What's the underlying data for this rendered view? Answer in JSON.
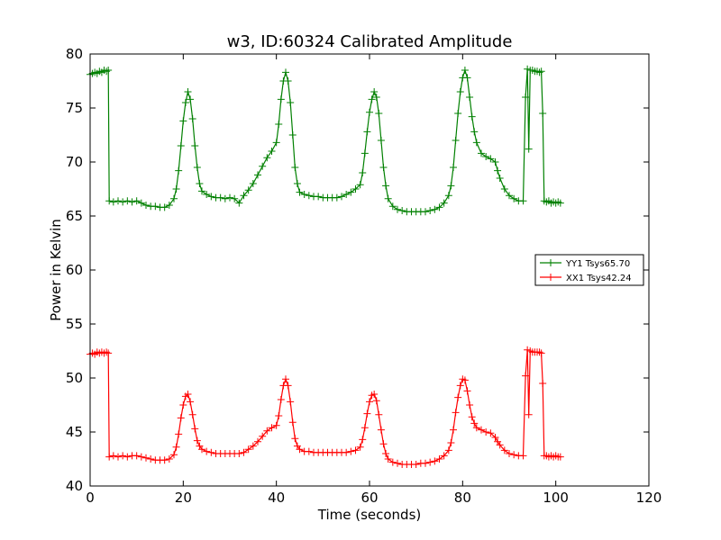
{
  "chart_data": {
    "type": "line",
    "title": "w3, ID:60324 Calibrated Amplitude",
    "xlabel": "Time (seconds)",
    "ylabel": "Power in Kelvin",
    "xlim": [
      0,
      120
    ],
    "ylim": [
      40,
      80
    ],
    "xticks": [
      "0",
      "20",
      "40",
      "60",
      "80",
      "100",
      "120"
    ],
    "yticks": [
      "40",
      "45",
      "50",
      "55",
      "60",
      "65",
      "70",
      "75",
      "80"
    ],
    "grid": false,
    "legend_position": "center-right",
    "marker": "plus",
    "series": [
      {
        "name": "YY1 Tsys65.70",
        "color": "#008000",
        "points": [
          [
            0.0,
            78.1
          ],
          [
            0.5,
            78.2
          ],
          [
            1.0,
            78.3
          ],
          [
            1.5,
            78.2
          ],
          [
            2.0,
            78.4
          ],
          [
            2.5,
            78.3
          ],
          [
            3.0,
            78.5
          ],
          [
            3.5,
            78.4
          ],
          [
            3.9,
            78.5
          ],
          [
            4.1,
            66.4
          ],
          [
            5,
            66.3
          ],
          [
            6,
            66.4
          ],
          [
            7,
            66.3
          ],
          [
            8,
            66.4
          ],
          [
            9,
            66.3
          ],
          [
            10,
            66.4
          ],
          [
            11,
            66.2
          ],
          [
            12,
            66.0
          ],
          [
            13,
            65.9
          ],
          [
            14,
            65.9
          ],
          [
            15,
            65.8
          ],
          [
            16,
            65.8
          ],
          [
            17,
            66.0
          ],
          [
            18,
            66.6
          ],
          [
            18.5,
            67.5
          ],
          [
            19,
            69.2
          ],
          [
            19.5,
            71.5
          ],
          [
            20,
            73.8
          ],
          [
            20.5,
            75.5
          ],
          [
            21,
            76.5
          ],
          [
            21.5,
            75.8
          ],
          [
            22,
            74.0
          ],
          [
            22.5,
            71.5
          ],
          [
            23,
            69.5
          ],
          [
            23.5,
            68.0
          ],
          [
            24,
            67.3
          ],
          [
            25,
            67.0
          ],
          [
            26,
            66.8
          ],
          [
            27,
            66.7
          ],
          [
            28,
            66.7
          ],
          [
            29,
            66.6
          ],
          [
            30,
            66.7
          ],
          [
            31,
            66.6
          ],
          [
            32,
            66.2
          ],
          [
            33,
            66.9
          ],
          [
            34,
            67.4
          ],
          [
            35,
            68.0
          ],
          [
            36,
            68.8
          ],
          [
            37,
            69.6
          ],
          [
            38,
            70.4
          ],
          [
            39,
            71.0
          ],
          [
            40,
            71.8
          ],
          [
            40.5,
            73.5
          ],
          [
            41,
            75.8
          ],
          [
            41.5,
            77.5
          ],
          [
            42,
            78.3
          ],
          [
            42.5,
            77.5
          ],
          [
            43,
            75.5
          ],
          [
            43.5,
            72.5
          ],
          [
            44,
            69.5
          ],
          [
            44.5,
            68.0
          ],
          [
            45,
            67.2
          ],
          [
            46,
            67.0
          ],
          [
            47,
            66.9
          ],
          [
            48,
            66.8
          ],
          [
            49,
            66.8
          ],
          [
            50,
            66.7
          ],
          [
            51,
            66.7
          ],
          [
            52,
            66.7
          ],
          [
            53,
            66.7
          ],
          [
            54,
            66.8
          ],
          [
            55,
            67.0
          ],
          [
            56,
            67.2
          ],
          [
            57,
            67.5
          ],
          [
            58,
            67.9
          ],
          [
            58.5,
            69.0
          ],
          [
            59,
            70.8
          ],
          [
            59.5,
            72.8
          ],
          [
            60,
            74.6
          ],
          [
            60.5,
            75.8
          ],
          [
            61,
            76.5
          ],
          [
            61.5,
            76.0
          ],
          [
            62,
            74.5
          ],
          [
            62.5,
            72.0
          ],
          [
            63,
            69.5
          ],
          [
            63.5,
            67.8
          ],
          [
            64,
            66.6
          ],
          [
            65,
            65.9
          ],
          [
            66,
            65.6
          ],
          [
            67,
            65.5
          ],
          [
            68,
            65.4
          ],
          [
            69,
            65.4
          ],
          [
            70,
            65.4
          ],
          [
            71,
            65.4
          ],
          [
            72,
            65.4
          ],
          [
            73,
            65.5
          ],
          [
            74,
            65.6
          ],
          [
            75,
            65.8
          ],
          [
            76,
            66.2
          ],
          [
            77,
            66.9
          ],
          [
            77.5,
            67.8
          ],
          [
            78,
            69.5
          ],
          [
            78.5,
            72.0
          ],
          [
            79,
            74.5
          ],
          [
            79.5,
            76.5
          ],
          [
            80,
            77.8
          ],
          [
            80.5,
            78.5
          ],
          [
            81,
            77.8
          ],
          [
            81.5,
            76.0
          ],
          [
            82,
            74.2
          ],
          [
            82.5,
            72.8
          ],
          [
            83,
            71.8
          ],
          [
            84,
            70.8
          ],
          [
            85,
            70.5
          ],
          [
            86,
            70.3
          ],
          [
            87,
            70.0
          ],
          [
            87.5,
            69.2
          ],
          [
            88,
            68.5
          ],
          [
            89,
            67.5
          ],
          [
            90,
            66.9
          ],
          [
            91,
            66.6
          ],
          [
            92,
            66.4
          ],
          [
            93,
            66.4
          ],
          [
            93.5,
            76.0
          ],
          [
            93.9,
            78.6
          ],
          [
            94.2,
            71.2
          ],
          [
            94.5,
            78.5
          ],
          [
            95,
            78.5
          ],
          [
            95.5,
            78.4
          ],
          [
            96,
            78.4
          ],
          [
            96.5,
            78.3
          ],
          [
            96.9,
            78.4
          ],
          [
            97.2,
            74.5
          ],
          [
            97.5,
            66.4
          ],
          [
            98,
            66.3
          ],
          [
            98.5,
            66.4
          ],
          [
            99,
            66.2
          ],
          [
            99.5,
            66.3
          ],
          [
            100,
            66.2
          ],
          [
            100.5,
            66.3
          ],
          [
            101,
            66.2
          ]
        ]
      },
      {
        "name": "XX1 Tsys42.24",
        "color": "#ff0000",
        "points": [
          [
            0.0,
            52.2
          ],
          [
            0.5,
            52.3
          ],
          [
            1.0,
            52.2
          ],
          [
            1.5,
            52.4
          ],
          [
            2.0,
            52.3
          ],
          [
            2.5,
            52.4
          ],
          [
            3.0,
            52.3
          ],
          [
            3.5,
            52.4
          ],
          [
            3.9,
            52.3
          ],
          [
            4.1,
            42.7
          ],
          [
            5,
            42.8
          ],
          [
            6,
            42.7
          ],
          [
            7,
            42.8
          ],
          [
            8,
            42.7
          ],
          [
            9,
            42.8
          ],
          [
            10,
            42.8
          ],
          [
            11,
            42.7
          ],
          [
            12,
            42.6
          ],
          [
            13,
            42.5
          ],
          [
            14,
            42.4
          ],
          [
            15,
            42.4
          ],
          [
            16,
            42.4
          ],
          [
            17,
            42.5
          ],
          [
            18,
            42.9
          ],
          [
            18.5,
            43.6
          ],
          [
            19,
            44.8
          ],
          [
            19.5,
            46.3
          ],
          [
            20,
            47.5
          ],
          [
            20.5,
            48.3
          ],
          [
            21,
            48.5
          ],
          [
            21.5,
            47.8
          ],
          [
            22,
            46.6
          ],
          [
            22.5,
            45.3
          ],
          [
            23,
            44.2
          ],
          [
            23.5,
            43.7
          ],
          [
            24,
            43.4
          ],
          [
            25,
            43.2
          ],
          [
            26,
            43.1
          ],
          [
            27,
            43.0
          ],
          [
            28,
            43.0
          ],
          [
            29,
            43.0
          ],
          [
            30,
            43.0
          ],
          [
            31,
            43.0
          ],
          [
            32,
            43.0
          ],
          [
            33,
            43.1
          ],
          [
            34,
            43.4
          ],
          [
            35,
            43.7
          ],
          [
            36,
            44.1
          ],
          [
            37,
            44.6
          ],
          [
            38,
            45.1
          ],
          [
            39,
            45.4
          ],
          [
            40,
            45.6
          ],
          [
            40.5,
            46.5
          ],
          [
            41,
            48.0
          ],
          [
            41.5,
            49.3
          ],
          [
            42,
            49.9
          ],
          [
            42.5,
            49.3
          ],
          [
            43,
            47.8
          ],
          [
            43.5,
            45.9
          ],
          [
            44,
            44.4
          ],
          [
            44.5,
            43.7
          ],
          [
            45,
            43.4
          ],
          [
            46,
            43.2
          ],
          [
            47,
            43.2
          ],
          [
            48,
            43.1
          ],
          [
            49,
            43.1
          ],
          [
            50,
            43.1
          ],
          [
            51,
            43.1
          ],
          [
            52,
            43.1
          ],
          [
            53,
            43.1
          ],
          [
            54,
            43.1
          ],
          [
            55,
            43.1
          ],
          [
            56,
            43.2
          ],
          [
            57,
            43.3
          ],
          [
            58,
            43.6
          ],
          [
            58.5,
            44.3
          ],
          [
            59,
            45.4
          ],
          [
            59.5,
            46.7
          ],
          [
            60,
            47.8
          ],
          [
            60.5,
            48.4
          ],
          [
            61,
            48.5
          ],
          [
            61.5,
            47.9
          ],
          [
            62,
            46.6
          ],
          [
            62.5,
            45.2
          ],
          [
            63,
            43.9
          ],
          [
            63.5,
            43.0
          ],
          [
            64,
            42.5
          ],
          [
            65,
            42.2
          ],
          [
            66,
            42.1
          ],
          [
            67,
            42.0
          ],
          [
            68,
            42.0
          ],
          [
            69,
            42.0
          ],
          [
            70,
            42.0
          ],
          [
            71,
            42.1
          ],
          [
            72,
            42.1
          ],
          [
            73,
            42.2
          ],
          [
            74,
            42.3
          ],
          [
            75,
            42.5
          ],
          [
            76,
            42.8
          ],
          [
            77,
            43.3
          ],
          [
            77.5,
            44.0
          ],
          [
            78,
            45.2
          ],
          [
            78.5,
            46.8
          ],
          [
            79,
            48.2
          ],
          [
            79.5,
            49.3
          ],
          [
            80,
            49.9
          ],
          [
            80.5,
            49.8
          ],
          [
            81,
            48.8
          ],
          [
            81.5,
            47.5
          ],
          [
            82,
            46.4
          ],
          [
            82.5,
            45.8
          ],
          [
            83,
            45.4
          ],
          [
            84,
            45.2
          ],
          [
            85,
            45.0
          ],
          [
            86,
            44.9
          ],
          [
            87,
            44.5
          ],
          [
            87.5,
            44.1
          ],
          [
            88,
            43.8
          ],
          [
            89,
            43.3
          ],
          [
            90,
            43.0
          ],
          [
            91,
            42.9
          ],
          [
            92,
            42.8
          ],
          [
            93,
            42.8
          ],
          [
            93.5,
            50.2
          ],
          [
            93.9,
            52.6
          ],
          [
            94.2,
            46.6
          ],
          [
            94.5,
            52.5
          ],
          [
            95,
            52.4
          ],
          [
            95.5,
            52.4
          ],
          [
            96,
            52.4
          ],
          [
            96.5,
            52.4
          ],
          [
            96.9,
            52.3
          ],
          [
            97.2,
            49.5
          ],
          [
            97.5,
            42.8
          ],
          [
            98,
            42.8
          ],
          [
            98.5,
            42.7
          ],
          [
            99,
            42.8
          ],
          [
            99.5,
            42.7
          ],
          [
            100,
            42.8
          ],
          [
            100.5,
            42.7
          ],
          [
            101,
            42.7
          ]
        ]
      }
    ]
  }
}
